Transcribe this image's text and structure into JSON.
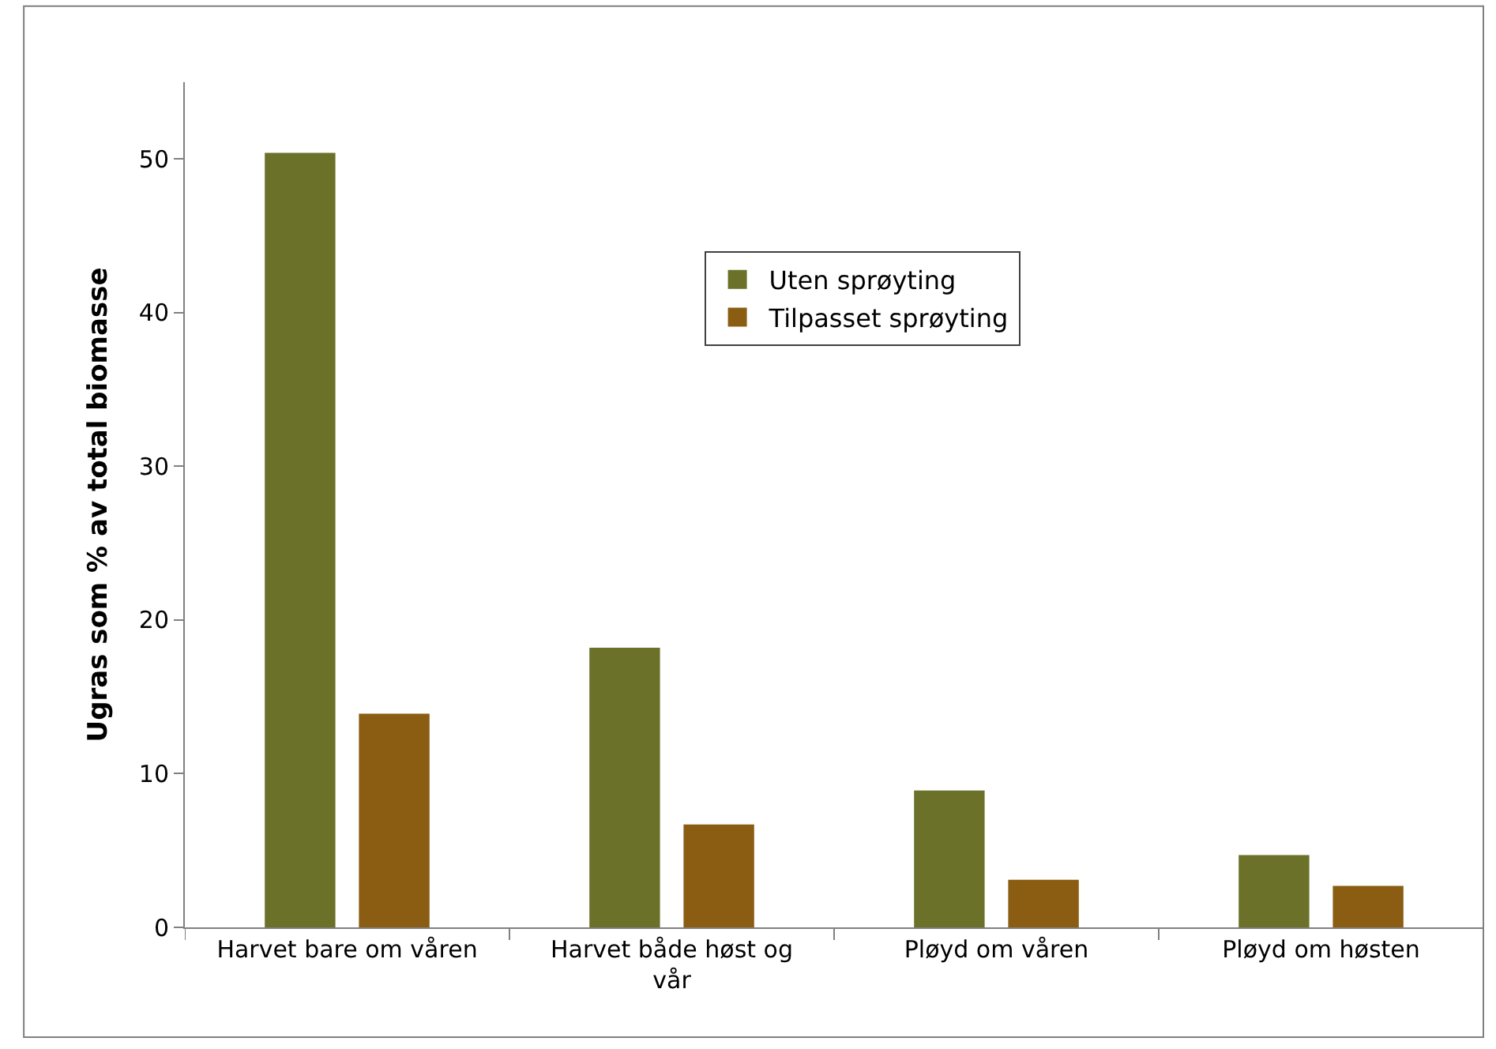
{
  "chart_data": {
    "type": "bar",
    "ylabel": "Ugras som % av total biomasse",
    "categories": [
      "Harvet bare om våren",
      "Harvet både høst og vår",
      "Pløyd om våren",
      "Pløyd om høsten"
    ],
    "series": [
      {
        "name": "Uten sprøyting",
        "color": "#6b7129",
        "values": [
          50.4,
          18.2,
          8.9,
          4.7
        ]
      },
      {
        "name": "Tilpasset sprøyting",
        "color": "#8a5d12",
        "values": [
          13.9,
          6.7,
          3.1,
          2.7
        ]
      }
    ],
    "ylim": [
      0,
      55
    ],
    "yticks": [
      0,
      10,
      20,
      30,
      40,
      50
    ],
    "grid": false,
    "legend": "top right"
  }
}
